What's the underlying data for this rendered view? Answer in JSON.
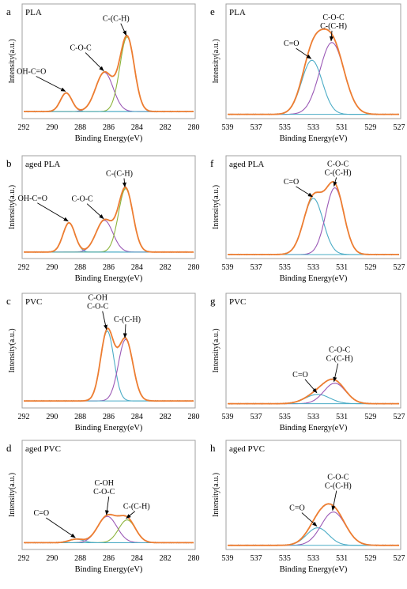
{
  "colors": {
    "raw": "#a6a6a6",
    "envelope": "#ed7d31",
    "component_1": "#4bacc6",
    "component_2": "#9b59b6",
    "component_3": "#8cb43c",
    "frame": "#a0a0a0"
  },
  "chart_data": [
    {
      "panel_letter": "a",
      "title": "PLA",
      "type": "line",
      "xlabel": "Binding Energy(eV)",
      "ylabel": "Intensity(a.u.)",
      "xlim": [
        292,
        280
      ],
      "x_reversed": true,
      "xticks": [
        "292",
        "290",
        "288",
        "286",
        "284",
        "282",
        "280"
      ],
      "baseline": 0.05,
      "y_max": 1.0,
      "series": [
        {
          "type": "envelope",
          "values": [
            [
              289.0,
              0.2,
              0.95
            ],
            [
              286.3,
              0.42,
              1.45
            ],
            [
              284.7,
              0.8,
              1.2
            ]
          ]
        },
        {
          "label": "OH-C=O",
          "center": 289.0,
          "height": 0.2,
          "fwhm": 0.95
        },
        {
          "label": "C-O-C",
          "center": 286.3,
          "height": 0.42,
          "fwhm": 1.45
        },
        {
          "label": "C-(C-H)",
          "center": 284.7,
          "height": 0.8,
          "fwhm": 1.2
        }
      ]
    },
    {
      "panel_letter": "b",
      "title": "aged PLA",
      "type": "line",
      "xlabel": "Binding Energy(eV)",
      "ylabel": "Intensity(a.u.)",
      "xlim": [
        292,
        280
      ],
      "x_reversed": true,
      "xticks": [
        "292",
        "290",
        "288",
        "286",
        "284",
        "282",
        "280"
      ],
      "baseline": 0.05,
      "y_max": 1.0,
      "series": [
        {
          "label": "OH-C=O",
          "center": 288.8,
          "height": 0.36,
          "fwhm": 1.0
        },
        {
          "label": "C-O-C",
          "center": 286.3,
          "height": 0.39,
          "fwhm": 1.4
        },
        {
          "label": "C-(C-H)",
          "center": 284.8,
          "height": 0.78,
          "fwhm": 1.2
        }
      ]
    },
    {
      "panel_letter": "c",
      "title": "PVC",
      "type": "line",
      "xlabel": "Binding Energy(eV)",
      "ylabel": "Intensity(a.u.)",
      "xlim": [
        292,
        280
      ],
      "x_reversed": true,
      "xticks": [
        "292",
        "290",
        "288",
        "286",
        "284",
        "282",
        "280"
      ],
      "baseline": 0.05,
      "y_max": 1.0,
      "series": [
        {
          "label": "C-OH\nC-O-C",
          "center": 286.1,
          "height": 0.75,
          "fwhm": 1.1
        },
        {
          "label": "C-(C-H)",
          "center": 284.8,
          "height": 0.66,
          "fwhm": 1.2
        }
      ]
    },
    {
      "panel_letter": "d",
      "title": "aged PVC",
      "type": "line",
      "xlabel": "Binding Energy(eV)",
      "ylabel": "Intensity(a.u.)",
      "xlim": [
        292,
        280
      ],
      "x_reversed": true,
      "xticks": [
        "292",
        "290",
        "288",
        "286",
        "284",
        "282",
        "280"
      ],
      "baseline": 0.05,
      "y_max": 1.0,
      "series": [
        {
          "label": "C=O",
          "center": 288.3,
          "height": 0.04,
          "fwhm": 1.2
        },
        {
          "label": "C-OH\nC-O-C",
          "center": 286.1,
          "height": 0.3,
          "fwhm": 1.6
        },
        {
          "label": "C-(C-H)",
          "center": 284.7,
          "height": 0.26,
          "fwhm": 1.4
        }
      ]
    },
    {
      "panel_letter": "e",
      "title": "PLA",
      "type": "line",
      "xlabel": "Binding Energy(eV)",
      "ylabel": "Intensity(a.u.)",
      "xlim": [
        539,
        527
      ],
      "x_reversed": true,
      "xticks": [
        "539",
        "537",
        "535",
        "533",
        "531",
        "529",
        "527"
      ],
      "baseline": 0.02,
      "y_max": 1.0,
      "series": [
        {
          "label": "C=O",
          "center": 533.1,
          "height": 0.58,
          "fwhm": 1.7
        },
        {
          "label": "C-O-C\nC-(C-H)",
          "center": 531.7,
          "height": 0.77,
          "fwhm": 2.0
        }
      ]
    },
    {
      "panel_letter": "f",
      "title": "aged PLA",
      "type": "line",
      "xlabel": "Binding Energy(eV)",
      "ylabel": "Intensity(a.u.)",
      "xlim": [
        539,
        527
      ],
      "x_reversed": true,
      "xticks": [
        "539",
        "537",
        "535",
        "533",
        "531",
        "529",
        "527"
      ],
      "baseline": 0.02,
      "y_max": 1.0,
      "series": [
        {
          "label": "C=O",
          "center": 533.0,
          "height": 0.69,
          "fwhm": 1.6
        },
        {
          "label": "C-O-C\nC-(C-H)",
          "center": 531.5,
          "height": 0.82,
          "fwhm": 1.5
        }
      ]
    },
    {
      "panel_letter": "g",
      "title": "PVC",
      "type": "line",
      "xlabel": "Binding Energy(eV)",
      "ylabel": "Intensity(a.u.)",
      "xlim": [
        539,
        527
      ],
      "x_reversed": true,
      "xticks": [
        "539",
        "537",
        "535",
        "533",
        "531",
        "529",
        "527"
      ],
      "baseline": 0.02,
      "y_max": 1.0,
      "series": [
        {
          "label": "C=O",
          "center": 532.7,
          "height": 0.1,
          "fwhm": 2.0
        },
        {
          "label": "C-O-C\nC-(C-H)",
          "center": 531.5,
          "height": 0.22,
          "fwhm": 1.8
        }
      ]
    },
    {
      "panel_letter": "h",
      "title": "aged PVC",
      "type": "line",
      "xlabel": "Binding Energy(eV)",
      "ylabel": "Intensity(a.u.)",
      "xlim": [
        539,
        527
      ],
      "x_reversed": true,
      "xticks": [
        "539",
        "537",
        "535",
        "533",
        "531",
        "529",
        "527"
      ],
      "baseline": 0.02,
      "y_max": 1.0,
      "series": [
        {
          "label": "C=O",
          "center": 532.7,
          "height": 0.2,
          "fwhm": 1.8
        },
        {
          "label": "C-O-C\nC-(C-H)",
          "center": 531.6,
          "height": 0.38,
          "fwhm": 2.0
        }
      ]
    }
  ]
}
